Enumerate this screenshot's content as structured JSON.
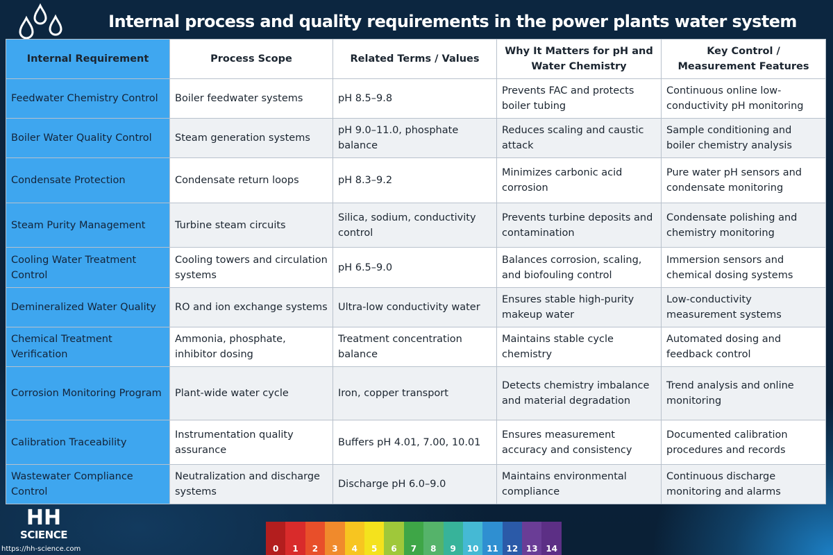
{
  "title": "Internal process and quality requirements in the power plants water system",
  "table": {
    "headers": [
      "Internal Requirement",
      "Process Scope",
      "Related Terms / Values",
      "Why It Matters for pH and Water Chemistry",
      "Key Control / Measurement Features"
    ],
    "rows": [
      [
        "Feedwater Chemistry Control",
        "Boiler feedwater systems",
        "pH 8.5–9.8",
        "Prevents FAC and protects boiler tubing",
        "Continuous online low-conductivity pH monitoring"
      ],
      [
        "Boiler Water Quality Control",
        "Steam generation systems",
        "pH 9.0–11.0, phosphate balance",
        "Reduces scaling and caustic attack",
        "Sample conditioning and boiler chemistry analysis"
      ],
      [
        "Condensate Protection",
        "Condensate return loops",
        "pH 8.3–9.2",
        "Minimizes carbonic acid corrosion",
        "Pure water pH sensors and condensate monitoring"
      ],
      [
        "Steam Purity Management",
        "Turbine steam circuits",
        "Silica, sodium, conductivity control",
        "Prevents turbine deposits and contamination",
        "Condensate polishing and chemistry monitoring"
      ],
      [
        "Cooling Water Treatment Control",
        "Cooling towers and circulation systems",
        "pH 6.5–9.0",
        "Balances corrosion, scaling, and biofouling control",
        "Immersion sensors and chemical dosing systems"
      ],
      [
        "Demineralized Water Quality",
        "RO and ion exchange systems",
        "Ultra-low conductivity water",
        "Ensures stable high-purity makeup water",
        "Low-conductivity measurement systems"
      ],
      [
        "Chemical Treatment Verification",
        "Ammonia, phosphate, inhibitor dosing",
        "Treatment concentration balance",
        "Maintains stable cycle chemistry",
        "Automated dosing and feedback control"
      ],
      [
        "Corrosion Monitoring Program",
        "Plant-wide water cycle",
        "Iron, copper transport",
        "Detects chemistry imbalance and material degradation",
        "Trend analysis and online monitoring"
      ],
      [
        "Calibration Traceability",
        "Instrumentation quality assurance",
        "Buffers pH 4.01, 7.00, 10.01",
        "Ensures measurement accuracy and consistency",
        "Documented calibration procedures and records"
      ],
      [
        "Wastewater Compliance Control",
        "Neutralization and discharge systems",
        "Discharge pH 6.0–9.0",
        "Maintains environmental compliance",
        "Continuous discharge monitoring and alarms"
      ]
    ]
  },
  "logo": {
    "top_text": "HH",
    "bottom_text": "SCIENCE"
  },
  "url": "https://hh-science.com",
  "ph_scale": {
    "labels": [
      "0",
      "1",
      "2",
      "3",
      "4",
      "5",
      "6",
      "7",
      "8",
      "9",
      "10",
      "11",
      "12",
      "13",
      "14"
    ],
    "colors": [
      "#b31e1e",
      "#d92b2b",
      "#e84f2a",
      "#f08a2c",
      "#f7c520",
      "#f4e21d",
      "#9fc83a",
      "#3ea647",
      "#55b36a",
      "#37b39a",
      "#45b9d4",
      "#2f8fd1",
      "#2b5aa8",
      "#6a3d96",
      "#5c2f85"
    ]
  },
  "colors": {
    "header_accent": "#3fa7f0",
    "requirement_cell": "#3ea6ef",
    "background": "#0a2238"
  }
}
